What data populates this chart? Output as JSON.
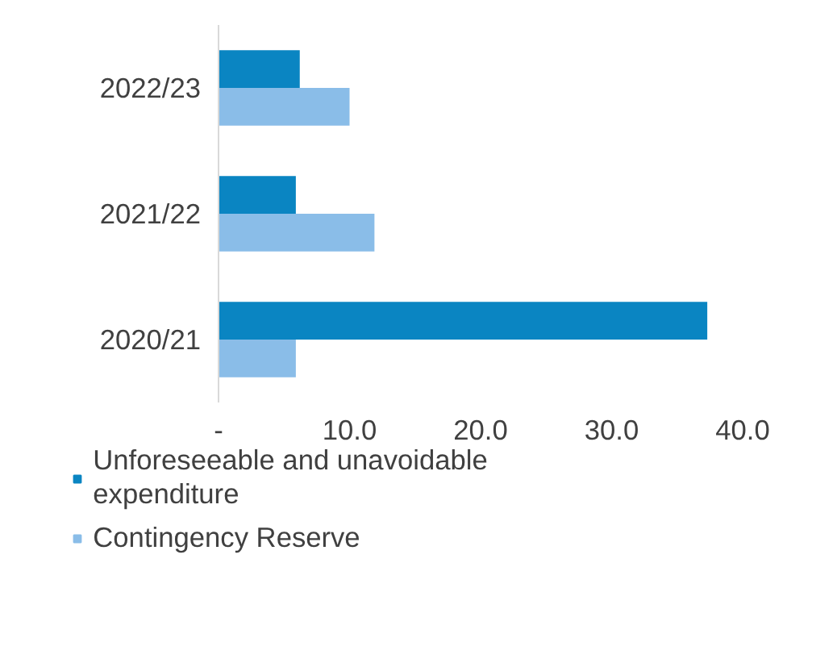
{
  "chart_data": {
    "type": "bar",
    "orientation": "horizontal",
    "categories": [
      "2022/23",
      "2021/22",
      "2020/21"
    ],
    "series": [
      {
        "name": "Unforeseeable and unavoidable expenditure",
        "color": "#0a85c2",
        "values": [
          6.2,
          5.9,
          37.3
        ]
      },
      {
        "name": "Contingency Reserve",
        "color": "#8abde8",
        "values": [
          10.0,
          11.9,
          5.9
        ]
      }
    ],
    "xlim": [
      0,
      40
    ],
    "xticks": [
      {
        "value": 0,
        "label": "-"
      },
      {
        "value": 10,
        "label": "10.0"
      },
      {
        "value": 20,
        "label": "20.0"
      },
      {
        "value": 30,
        "label": "30.0"
      },
      {
        "value": 40,
        "label": "40.0"
      }
    ],
    "legend": "bottom"
  }
}
